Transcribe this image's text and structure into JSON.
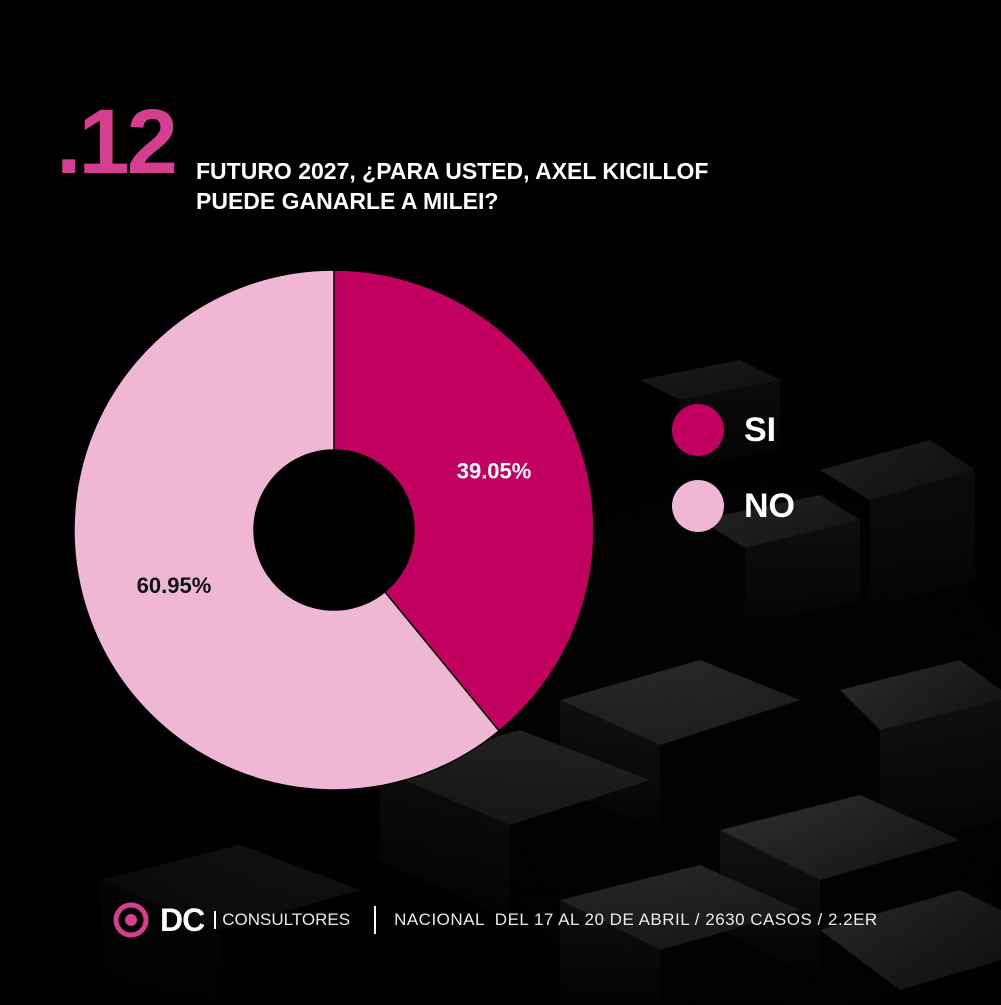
{
  "header": {
    "number": ".12",
    "question_line1": "FUTURO 2027, ¿PARA USTED, AXEL KICILLOF",
    "question_line2": "PUEDE GANARLE A MILEI?"
  },
  "chart_data": {
    "type": "pie",
    "donut": true,
    "title": "",
    "categories": [
      "SI",
      "NO"
    ],
    "values": [
      39.05,
      60.95
    ],
    "value_labels": [
      "39.05%",
      "60.95%"
    ],
    "colors": [
      "#c2005f",
      "#efb7d3"
    ],
    "label_colors": [
      "#ffffff",
      "#111111"
    ],
    "start": "top, clockwise",
    "legend_placement": "right"
  },
  "legend": [
    {
      "label": "SI",
      "color": "#c2005f"
    },
    {
      "label": "NO",
      "color": "#efb7d3"
    }
  ],
  "footer": {
    "brand": "DC",
    "brand_sub": "CONSULTORES",
    "meta": "NACIONAL  DEL 17 AL 20 DE ABRIL / 2630 CASOS / 2.2ER",
    "accent_color": "#d63e8f"
  }
}
